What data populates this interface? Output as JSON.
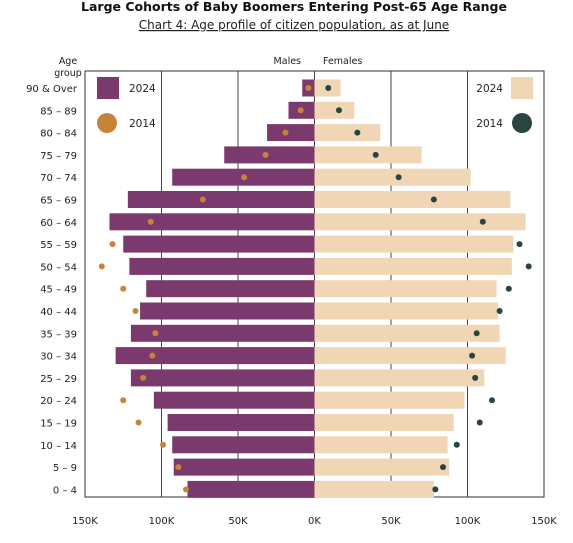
{
  "chart_data": {
    "type": "bar",
    "title": "Large Cohorts of Baby Boomers Entering Post-65 Age Range",
    "subtitle": "Chart 4: Age profile of citizen population, as at June",
    "ylabel_line1": "Age",
    "ylabel_line2": "group",
    "males_label": "Males",
    "females_label": "Females",
    "xlim": [
      -150000,
      150000
    ],
    "x_ticks": [
      {
        "value": -150000,
        "label": "150K"
      },
      {
        "value": -100000,
        "label": "100K"
      },
      {
        "value": -50000,
        "label": "50K"
      },
      {
        "value": 0,
        "label": "0K"
      },
      {
        "value": 50000,
        "label": "50K"
      },
      {
        "value": 100000,
        "label": "100K"
      },
      {
        "value": 150000,
        "label": "150K"
      }
    ],
    "categories": [
      "90 & Over",
      "85 – 89",
      "80 – 84",
      "75 – 79",
      "70 – 74",
      "65 – 69",
      "60 – 64",
      "55 – 59",
      "50 – 54",
      "45 – 49",
      "40 – 44",
      "35 – 39",
      "30 – 34",
      "25 – 29",
      "20 – 24",
      "15 – 19",
      "10 – 14",
      "5 – 9",
      "0 – 4"
    ],
    "series": [
      {
        "name": "2024",
        "group": "Males",
        "mark": "bar",
        "values": [
          8000,
          17000,
          31000,
          59000,
          93000,
          122000,
          134000,
          125000,
          121000,
          110000,
          114000,
          120000,
          130000,
          120000,
          105000,
          96000,
          93000,
          92000,
          83000
        ]
      },
      {
        "name": "2014",
        "group": "Males",
        "mark": "dot",
        "values": [
          4000,
          9000,
          19000,
          32000,
          46000,
          73000,
          107000,
          132000,
          139000,
          125000,
          117000,
          104000,
          106000,
          112000,
          125000,
          115000,
          99000,
          89000,
          84000
        ]
      },
      {
        "name": "2024",
        "group": "Females",
        "mark": "bar",
        "values": [
          17000,
          26000,
          43000,
          70000,
          102000,
          128000,
          138000,
          130000,
          129000,
          119000,
          120000,
          121000,
          125000,
          111000,
          98000,
          91000,
          87000,
          88000,
          78000
        ]
      },
      {
        "name": "2014",
        "group": "Females",
        "mark": "dot",
        "values": [
          9000,
          16000,
          28000,
          40000,
          55000,
          78000,
          110000,
          134000,
          140000,
          127000,
          121000,
          106000,
          103000,
          105000,
          116000,
          108000,
          93000,
          84000,
          79000
        ]
      }
    ],
    "legend": {
      "left": [
        {
          "label": "2024",
          "shape": "square",
          "color": "#7b3a6e"
        },
        {
          "label": "2014",
          "shape": "circle",
          "color": "#c8833a"
        }
      ],
      "right": [
        {
          "label": "2024",
          "shape": "square",
          "color": "#f1d6b6"
        },
        {
          "label": "2014",
          "shape": "circle",
          "color": "#2a443f"
        }
      ]
    },
    "colors": {
      "males_bar": "#7b3a6e",
      "males_dot": "#c8833a",
      "females_bar": "#f1d6b6",
      "females_dot": "#2a443f",
      "grid": "#444444"
    },
    "grid": true
  }
}
